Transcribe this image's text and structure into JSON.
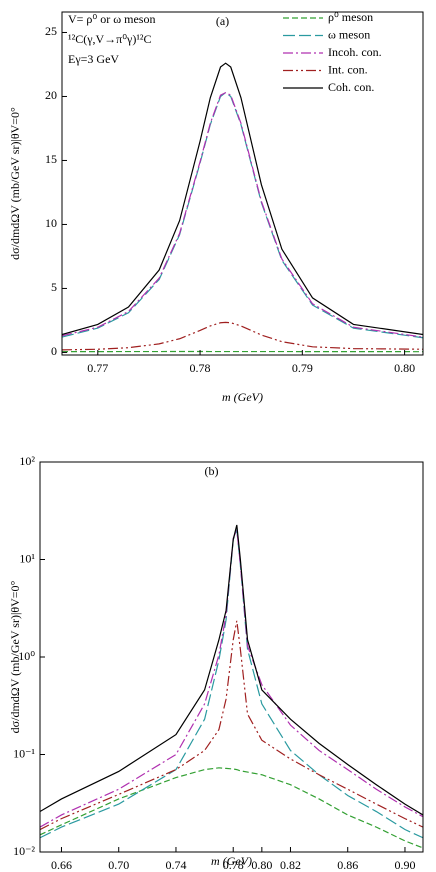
{
  "chart_data": [
    {
      "type": "line",
      "title": "(a)",
      "xlabel": "m (GeV)",
      "ylabel": "dσ/dmdΩV (mb/GeV sr)|θV=0°",
      "annotations": [
        "V= ρ⁰ or ω meson",
        "¹²C(γ,V→π⁰γ)¹²C",
        "Eγ=3 GeV"
      ],
      "legend": "upper right",
      "grid": false,
      "yscale": "linear",
      "xlim": [
        0.7665,
        0.8018
      ],
      "ylim": [
        -0.2,
        26.6
      ],
      "xticks": [
        0.77,
        0.78,
        0.79,
        {
          "value": 0.8,
          "label": "0.80"
        }
      ],
      "yticks": [
        0,
        5,
        10,
        15,
        20,
        25
      ],
      "x": [
        0.7665,
        0.77,
        0.773,
        0.776,
        0.778,
        0.78,
        0.781,
        0.782,
        0.7825,
        0.783,
        0.784,
        0.786,
        0.788,
        0.791,
        0.795,
        0.8018
      ],
      "series": [
        {
          "name": "ρ⁰ meson",
          "color": "#33a033",
          "dash": "6,3",
          "values": [
            0.06,
            0.065,
            0.068,
            0.07,
            0.071,
            0.071,
            0.07,
            0.07,
            0.07,
            0.07,
            0.069,
            0.068,
            0.067,
            0.066,
            0.064,
            0.06
          ]
        },
        {
          "name": "ω meson",
          "color": "#2a9aa0",
          "dash": "12,4",
          "values": [
            1.2,
            1.9,
            3.1,
            5.7,
            9.2,
            14.8,
            17.8,
            20.0,
            20.3,
            20.0,
            17.8,
            11.7,
            7.2,
            3.7,
            1.9,
            1.15
          ]
        },
        {
          "name": "Incoh. con.",
          "color": "#b030b0",
          "dash": "10,3,2,3",
          "values": [
            1.3,
            1.97,
            3.2,
            5.8,
            9.3,
            14.9,
            17.9,
            20.1,
            20.3,
            20.1,
            17.9,
            11.8,
            7.3,
            3.8,
            1.97,
            1.2
          ]
        },
        {
          "name": "Int. con.",
          "color": "#a02020",
          "dash": "10,3,2,3,2,3",
          "values": [
            0.2,
            0.25,
            0.37,
            0.67,
            1.07,
            1.72,
            2.07,
            2.32,
            2.35,
            2.32,
            2.07,
            1.36,
            0.84,
            0.44,
            0.3,
            0.25
          ]
        },
        {
          "name": "Coh. con.",
          "color": "#000000",
          "dash": "none",
          "values": [
            1.4,
            2.19,
            3.55,
            6.44,
            10.3,
            16.5,
            19.9,
            22.3,
            22.6,
            22.3,
            19.9,
            13.1,
            8.07,
            4.26,
            2.19,
            1.4
          ]
        }
      ]
    },
    {
      "type": "line",
      "title": "(b)",
      "xlabel": "m (GeV)",
      "ylabel": "dσ/dmdΩV (mb/GeV sr)|θV=0°",
      "grid": false,
      "yscale": "log",
      "xlim": [
        0.645,
        0.9126
      ],
      "ylim": [
        0.01,
        100
      ],
      "xticks": [
        0.66,
        {
          "value": 0.7,
          "label": "0.70"
        },
        0.74,
        0.78,
        {
          "value": 0.8,
          "label": "0.80"
        },
        0.82,
        0.86,
        {
          "value": 0.9,
          "label": "0.90"
        }
      ],
      "yticks": [
        {
          "value": 0.01,
          "label": "10⁻²"
        },
        {
          "value": 0.1,
          "label": "10⁻¹"
        },
        {
          "value": 1,
          "label": "10⁰"
        },
        {
          "value": 10,
          "label": "10¹"
        },
        {
          "value": 100,
          "label": "10²"
        }
      ],
      "x": [
        0.645,
        0.66,
        0.7,
        0.74,
        0.76,
        0.77,
        0.775,
        0.78,
        0.7825,
        0.785,
        0.79,
        0.8,
        0.82,
        0.84,
        0.86,
        0.88,
        0.9,
        0.9126
      ],
      "series": [
        {
          "color": "#33a033",
          "dash": "6,3",
          "values": [
            0.015,
            0.019,
            0.035,
            0.058,
            0.07,
            0.073,
            0.072,
            0.071,
            0.07,
            0.068,
            0.066,
            0.062,
            0.049,
            0.035,
            0.024,
            0.018,
            0.013,
            0.011
          ]
        },
        {
          "color": "#2a9aa0",
          "dash": "12,4",
          "values": [
            0.014,
            0.018,
            0.031,
            0.07,
            0.23,
            0.93,
            2.4,
            16,
            20.3,
            8.8,
            1.2,
            0.33,
            0.11,
            0.062,
            0.038,
            0.026,
            0.017,
            0.014
          ]
        },
        {
          "color": "#b030b0",
          "dash": "10,3,2,3",
          "values": [
            0.018,
            0.024,
            0.044,
            0.1,
            0.33,
            1.05,
            2.7,
            16.5,
            20.3,
            8.9,
            1.3,
            0.52,
            0.2,
            0.11,
            0.07,
            0.044,
            0.029,
            0.023
          ]
        },
        {
          "color": "#a02020",
          "dash": "10,3,2,3,2,3",
          "values": [
            0.017,
            0.022,
            0.039,
            0.07,
            0.11,
            0.18,
            0.37,
            1.5,
            2.35,
            1.2,
            0.26,
            0.14,
            0.09,
            0.062,
            0.044,
            0.031,
            0.022,
            0.018
          ]
        },
        {
          "color": "#000000",
          "dash": "none",
          "values": [
            0.026,
            0.035,
            0.067,
            0.16,
            0.46,
            1.5,
            3.0,
            16,
            22.6,
            10,
            1.5,
            0.46,
            0.23,
            0.13,
            0.079,
            0.049,
            0.031,
            0.024
          ]
        }
      ]
    }
  ]
}
